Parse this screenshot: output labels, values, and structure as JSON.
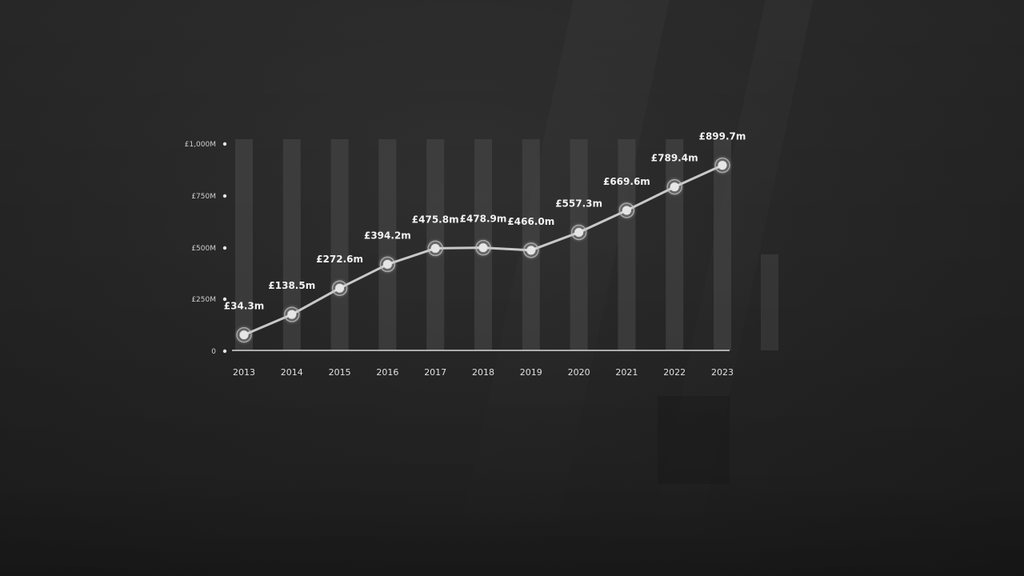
{
  "chart_data": {
    "type": "line",
    "title": "",
    "xlabel": "",
    "ylabel": "",
    "categories": [
      "2013",
      "2014",
      "2015",
      "2016",
      "2017",
      "2018",
      "2019",
      "2020",
      "2021",
      "2022",
      "2023"
    ],
    "values": [
      34.3,
      138.5,
      272.6,
      394.2,
      475.8,
      478.9,
      466.0,
      557.3,
      669.6,
      789.4,
      899.7
    ],
    "data_labels": [
      "£34.3m",
      "£138.5m",
      "£272.6m",
      "£394.2m",
      "£475.8m",
      "£478.9m",
      "£466.0m",
      "£557.3m",
      "£669.6m",
      "£789.4m",
      "£899.7m"
    ],
    "y_ticks": [
      "0",
      "£250M",
      "£500M",
      "£750M",
      "£1,000M"
    ],
    "ylim": [
      0,
      1000
    ],
    "grid": false,
    "colors": {
      "line": "#c8c8c8",
      "point": "#e6e6e6",
      "column": "#4a4a4a",
      "axis": "#d8d8d8"
    }
  }
}
